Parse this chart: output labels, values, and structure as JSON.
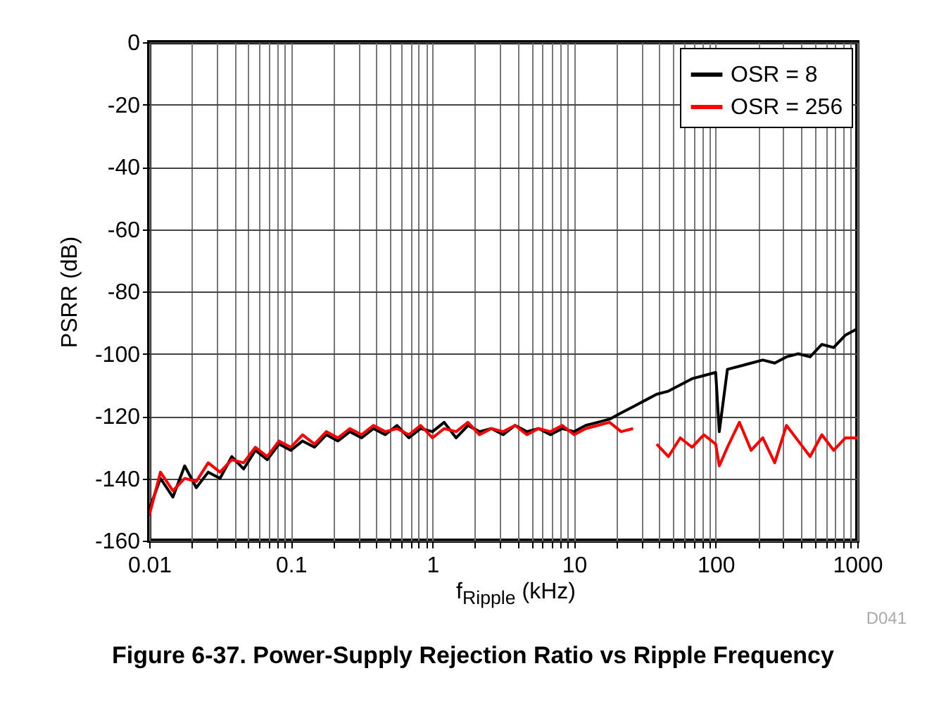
{
  "chart_data": {
    "type": "line",
    "title": "Figure 6-37. Power-Supply Rejection Ratio vs Ripple Frequency",
    "xlabel": "f$_{Ripple}$ (kHz)",
    "ylabel": "PSRR (dB)",
    "annotations": [
      "D041"
    ],
    "x": [
      0.01,
      0.012,
      0.0147,
      0.0178,
      0.0215,
      0.0261,
      0.0316,
      0.0383,
      0.0464,
      0.0562,
      0.0681,
      0.0825,
      0.1,
      0.121,
      0.147,
      0.178,
      0.215,
      0.261,
      0.316,
      0.383,
      0.464,
      0.562,
      0.681,
      0.825,
      1,
      1.21,
      1.47,
      1.78,
      2.15,
      2.61,
      3.16,
      3.83,
      4.64,
      5.62,
      6.81,
      8.25,
      10,
      12.1,
      14.7,
      17.8,
      21.5,
      26.1,
      31.6,
      38.3,
      46.4,
      56.2,
      68.1,
      82.5,
      100,
      106,
      121,
      147,
      178,
      215,
      261,
      316,
      383,
      464,
      562,
      681,
      825,
      1000
    ],
    "series": [
      {
        "name": "OSR = 8",
        "color": "#000000",
        "values": [
          -150,
          -140,
          -146,
          -136,
          -143,
          -138,
          -140,
          -133,
          -137,
          -131,
          -134,
          -129,
          -131,
          -128,
          -130,
          -126,
          -128,
          -125,
          -127,
          -124,
          -126,
          -123,
          -127,
          -124,
          -125,
          -122,
          -127,
          -123,
          -125,
          -124,
          -126,
          -123,
          -125,
          -124,
          -126,
          -124,
          -125,
          -123,
          -122,
          -121,
          -119,
          -117,
          -115,
          -113,
          -112,
          -110,
          -108,
          -107,
          -106,
          -125,
          -105,
          -104,
          -103,
          -102,
          -103,
          -101,
          -100,
          -101,
          -97,
          -98,
          -94,
          -92
        ]
      },
      {
        "name": "OSR = 256",
        "color": "#ff0000",
        "values": [
          -152,
          -138,
          -144,
          -140,
          -141,
          -135,
          -138,
          -134,
          -135,
          -130,
          -133,
          -128,
          -130,
          -126,
          -129,
          -125,
          -127,
          -124,
          -126,
          -123,
          -125,
          -124,
          -126,
          -123,
          -127,
          -124,
          -125,
          -122,
          -126,
          -124,
          -125,
          -123,
          -126,
          -124,
          -125,
          -123,
          -126,
          -124,
          -123,
          -122,
          -125,
          -124,
          null,
          -129,
          -133,
          -127,
          -130,
          -126,
          -129,
          -136,
          -130,
          -122,
          -131,
          -127,
          -135,
          -123,
          -128,
          -133,
          -126,
          -131,
          -127,
          -127
        ]
      }
    ],
    "log": "x",
    "xlim": [
      0.01,
      1000
    ],
    "xticks": [
      0.01,
      {
        "value": 0.02,
        "label": null
      },
      {
        "value": 0.03,
        "label": null
      },
      {
        "value": 0.04,
        "label": null
      },
      {
        "value": 0.05,
        "label": null
      },
      {
        "value": 0.06,
        "label": null
      },
      {
        "value": 0.07,
        "label": null
      },
      {
        "value": 0.08,
        "label": null
      },
      {
        "value": 0.09,
        "label": null
      },
      0.1,
      {
        "value": 0.2,
        "label": null
      },
      {
        "value": 0.3,
        "label": null
      },
      {
        "value": 0.4,
        "label": null
      },
      {
        "value": 0.5,
        "label": null
      },
      {
        "value": 0.6,
        "label": null
      },
      {
        "value": 0.7,
        "label": null
      },
      {
        "value": 0.8,
        "label": null
      },
      {
        "value": 0.9,
        "label": null
      },
      1,
      {
        "value": 2,
        "label": null
      },
      {
        "value": 3,
        "label": null
      },
      {
        "value": 4,
        "label": null
      },
      {
        "value": 5,
        "label": null
      },
      {
        "value": 6,
        "label": null
      },
      {
        "value": 7,
        "label": null
      },
      {
        "value": 8,
        "label": null
      },
      {
        "value": 9,
        "label": null
      },
      10,
      {
        "value": 20,
        "label": null
      },
      {
        "value": 30,
        "label": null
      },
      {
        "value": 40,
        "label": null
      },
      {
        "value": 50,
        "label": null
      },
      {
        "value": 60,
        "label": null
      },
      {
        "value": 70,
        "label": null
      },
      {
        "value": 80,
        "label": null
      },
      {
        "value": 90,
        "label": null
      },
      100,
      {
        "value": 200,
        "label": null
      },
      {
        "value": 300,
        "label": null
      },
      {
        "value": 400,
        "label": null
      },
      {
        "value": 500,
        "label": null
      },
      {
        "value": 600,
        "label": null
      },
      {
        "value": 700,
        "label": null
      },
      {
        "value": 800,
        "label": null
      },
      {
        "value": 900,
        "label": null
      },
      1000
    ],
    "ylim": [
      -160,
      0
    ],
    "yticks": [
      -160,
      -140,
      -120,
      -100,
      -80,
      -60,
      -40,
      -20,
      0
    ],
    "grid": true,
    "legend": "top right",
    "line_style": "solid"
  }
}
